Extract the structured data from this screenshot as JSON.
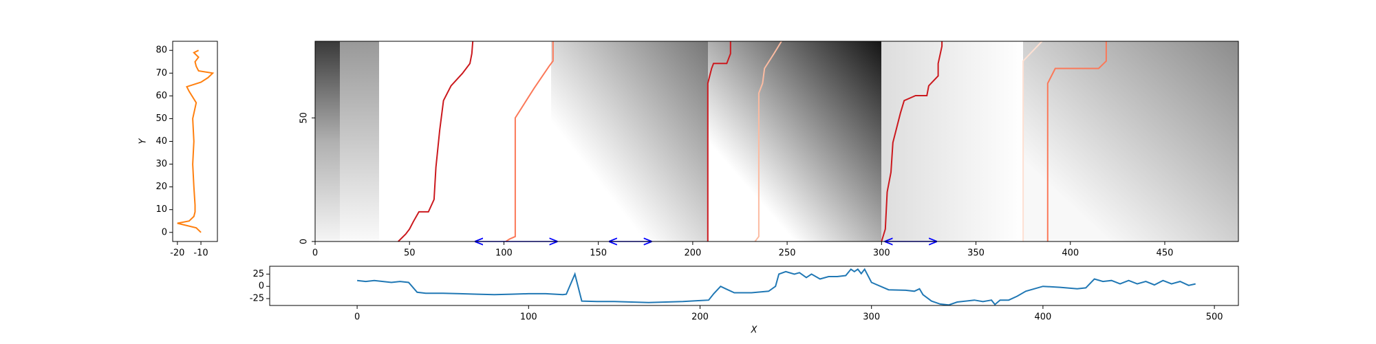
{
  "chart_data": [
    {
      "type": "line",
      "ylabel": "Y",
      "xlim": [
        -22,
        -3
      ],
      "ylim": [
        -4,
        84
      ],
      "xticks": [
        -20,
        -10
      ],
      "yticks": [
        0,
        10,
        20,
        30,
        40,
        50,
        60,
        70,
        80
      ],
      "series": [
        {
          "color": "#ff7f0e",
          "x": [
            -10,
            -12,
            -20,
            -15,
            -13,
            -12.5,
            -12.5,
            -13,
            -13.5,
            -13,
            -13.5,
            -12,
            -15,
            -16,
            -10,
            -7,
            -5,
            -11,
            -12,
            -12.5,
            -11,
            -13,
            -11
          ],
          "values": [
            0,
            2,
            4,
            5,
            7,
            9,
            12,
            20,
            30,
            40,
            50,
            57,
            62,
            64,
            66,
            68,
            70,
            71,
            73,
            75,
            77,
            79,
            80
          ]
        }
      ]
    },
    {
      "type": "heatmap",
      "ytick_rotation": -90,
      "xlim": [
        0,
        489
      ],
      "ylim": [
        0,
        81
      ],
      "xticks": [
        0,
        50,
        100,
        150,
        200,
        250,
        300,
        350,
        400,
        450
      ],
      "yticks": [
        0,
        50
      ],
      "series": [
        {
          "color": "#cb181d",
          "x": [
            44,
            48,
            50,
            52,
            55,
            60,
            63,
            64,
            66,
            68,
            72,
            78,
            82,
            83,
            83.5
          ],
          "values": [
            0,
            3,
            5,
            8,
            12,
            12,
            17,
            30,
            45,
            57,
            63,
            68,
            72,
            76,
            81
          ]
        },
        {
          "color": "#fb7858",
          "x": [
            101,
            103,
            106,
            106,
            116,
            124,
            126,
            126
          ],
          "values": [
            0,
            1,
            2,
            50,
            62,
            71,
            73,
            81
          ]
        },
        {
          "color": "#cb181d",
          "x": [
            208,
            208,
            210,
            211,
            218,
            220,
            220
          ],
          "values": [
            0,
            64,
            70,
            72,
            72,
            76,
            81
          ]
        },
        {
          "color": "#fcbba1",
          "x": [
            233,
            235,
            235,
            237,
            238,
            243,
            247
          ],
          "values": [
            0,
            2,
            60,
            64,
            70,
            76,
            81
          ]
        },
        {
          "color": "#cb181d",
          "x": [
            300,
            302,
            303,
            305,
            306,
            308,
            310,
            312,
            318,
            324,
            325,
            330,
            330,
            332,
            332
          ],
          "values": [
            0,
            5,
            20,
            28,
            40,
            46,
            52,
            57,
            59,
            59,
            63,
            67,
            72,
            79,
            81
          ]
        },
        {
          "color": "#fee0d2",
          "x": [
            375,
            375,
            385
          ],
          "values": [
            0,
            73,
            81
          ]
        },
        {
          "color": "#fb7858",
          "x": [
            388,
            388,
            392,
            415,
            419,
            419
          ],
          "values": [
            0,
            64,
            70,
            70,
            73,
            81
          ]
        }
      ],
      "arrows": [
        {
          "x": [
            85,
            128
          ],
          "y": 0,
          "color": "#0000ff"
        },
        {
          "x": [
            156,
            178
          ],
          "y": 0,
          "color": "#0000ff"
        },
        {
          "x": [
            302,
            329
          ],
          "y": 0,
          "color": "#0000ff"
        }
      ]
    },
    {
      "type": "line",
      "xlabel": "X",
      "xlim": [
        -51,
        514
      ],
      "ylim": [
        -39,
        41
      ],
      "xticks": [
        0,
        100,
        200,
        300,
        400,
        500
      ],
      "yticks": [
        25,
        0,
        -25
      ],
      "series": [
        {
          "color": "#1f77b4",
          "x": [
            0,
            5,
            10,
            15,
            20,
            25,
            30,
            35,
            40,
            50,
            60,
            70,
            80,
            90,
            100,
            110,
            120,
            122,
            127,
            131,
            140,
            150,
            160,
            170,
            180,
            190,
            200,
            205,
            208,
            212,
            215,
            220,
            230,
            240,
            244,
            246,
            250,
            255,
            258,
            262,
            265,
            270,
            275,
            280,
            285,
            288,
            290,
            292,
            294,
            296,
            300,
            310,
            320,
            325,
            328,
            330,
            335,
            340,
            345,
            350,
            360,
            365,
            370,
            372,
            375,
            380,
            385,
            390,
            400,
            410,
            420,
            425,
            430,
            435,
            440,
            445,
            450,
            455,
            460,
            465,
            470,
            475,
            480,
            485,
            489
          ],
          "values": [
            12,
            10,
            12,
            10,
            8,
            10,
            8,
            -12,
            -14,
            -14,
            -15,
            -16,
            -17,
            -16,
            -15,
            -15,
            -17,
            -16,
            25,
            -30,
            -31,
            -31,
            -32,
            -33,
            -32,
            -31,
            -29,
            -28,
            -15,
            0,
            -5,
            -13,
            -13,
            -10,
            0,
            25,
            30,
            25,
            28,
            18,
            25,
            15,
            20,
            20,
            22,
            35,
            30,
            35,
            26,
            35,
            8,
            -7,
            -8,
            -10,
            -5,
            -17,
            -30,
            -36,
            -38,
            -32,
            -28,
            -31,
            -28,
            -37,
            -28,
            -28,
            -20,
            -10,
            0,
            -2,
            -5,
            -3,
            15,
            10,
            12,
            5,
            12,
            5,
            10,
            3,
            12,
            5,
            10,
            2,
            5
          ]
        }
      ]
    }
  ]
}
